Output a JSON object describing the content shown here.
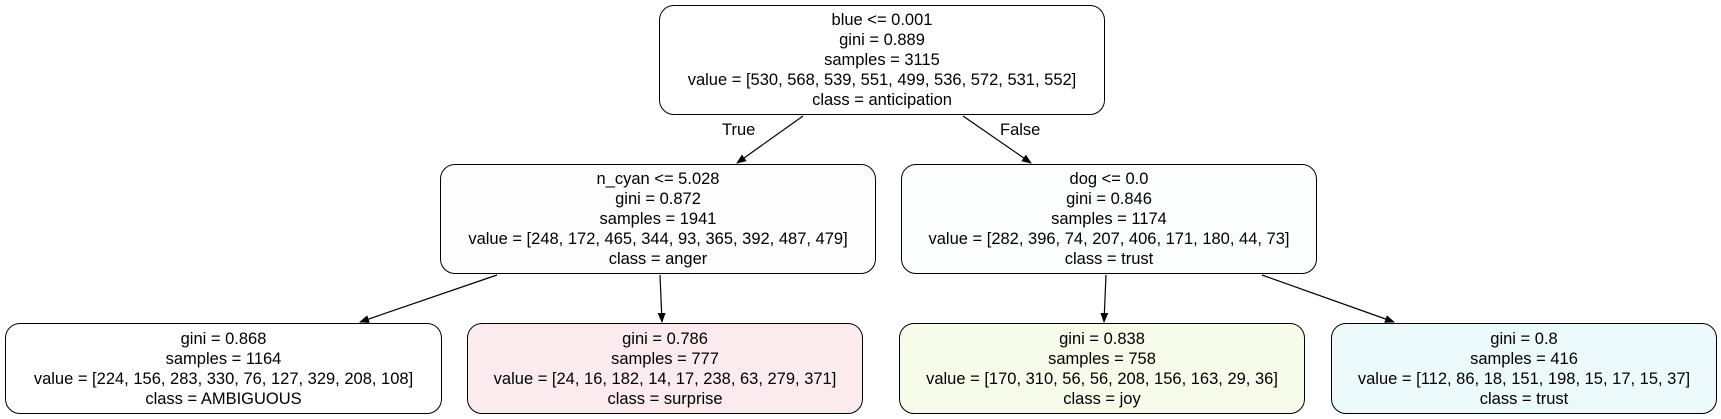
{
  "nodes": {
    "root": {
      "lines": [
        "blue <= 0.001",
        "gini = 0.889",
        "samples = 3115",
        "value = [530, 568, 539, 551, 499, 536, 572, 531, 552]",
        "class = anticipation"
      ],
      "fill": "#ffffff"
    },
    "left": {
      "lines": [
        "n_cyan <= 5.028",
        "gini = 0.872",
        "samples = 1941",
        "value = [248, 172, 465, 344, 93, 365, 392, 487, 479]",
        "class = anger"
      ],
      "fill": "#fdfdfd"
    },
    "right": {
      "lines": [
        "dog <= 0.0",
        "gini = 0.846",
        "samples = 1174",
        "value = [282, 396, 74, 207, 406, 171, 180, 44, 73]",
        "class = trust"
      ],
      "fill": "#fbfefd"
    },
    "leaf1": {
      "lines": [
        "gini = 0.868",
        "samples = 1164",
        "value = [224, 156, 283, 330, 76, 127, 329, 208, 108]",
        "class = AMBIGUOUS"
      ],
      "fill": "#ffffff"
    },
    "leaf2": {
      "lines": [
        "gini = 0.786",
        "samples = 777",
        "value = [24, 16, 182, 14, 17, 238, 63, 279, 371]",
        "class = surprise"
      ],
      "fill": "#fbebee"
    },
    "leaf3": {
      "lines": [
        "gini = 0.838",
        "samples = 758",
        "value = [170, 310, 56, 56, 208, 156, 163, 29, 36]",
        "class = joy"
      ],
      "fill": "#f7fbe9"
    },
    "leaf4": {
      "lines": [
        "gini = 0.8",
        "samples = 416",
        "value = [112, 86, 18, 151, 198, 15, 17, 15, 37]",
        "class = trust"
      ],
      "fill": "#ecfafb"
    }
  },
  "edges": {
    "true_label": "True",
    "false_label": "False"
  }
}
